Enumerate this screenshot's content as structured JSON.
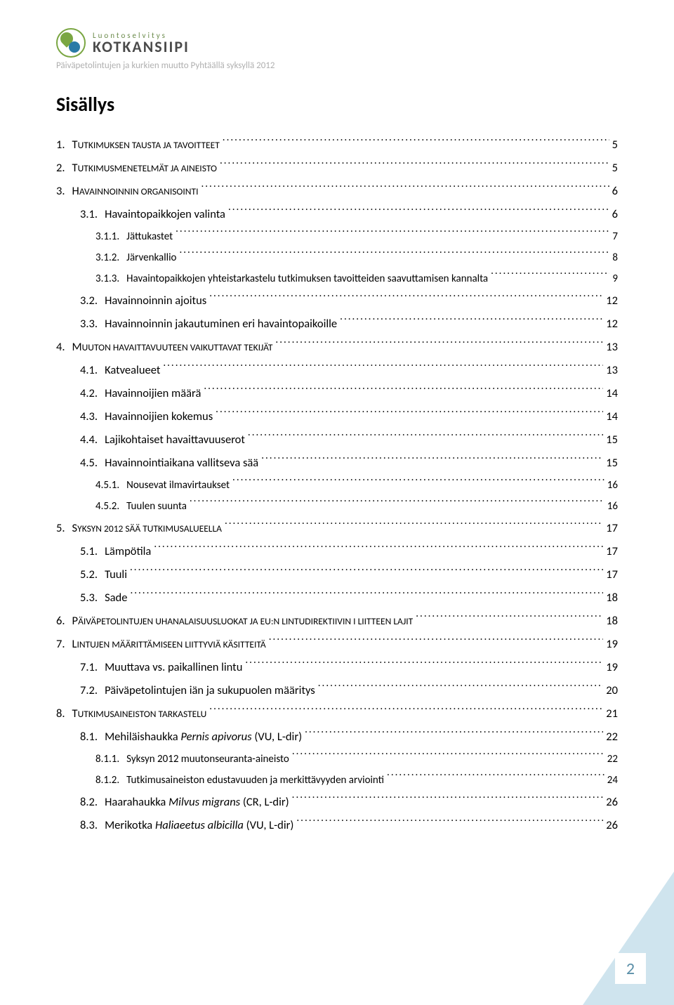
{
  "header": {
    "logo_sub": "Luontoselvitys",
    "logo_main": "KOTKANSIIPI",
    "caption": "Päiväpetolintujen ja kurkien muutto Pyhtäällä syksyllä 2012"
  },
  "title": "Sisällys",
  "page_number": "2",
  "colors": {
    "logo_green": "#7aa642",
    "logo_blue": "#2a7aa6",
    "caption_gray": "#b0b0b0",
    "corner_blue": "#cfe4ee",
    "pagenum_color": "#5b8fa8"
  },
  "toc": [
    {
      "level": 1,
      "num": "1.",
      "label_sc": "T",
      "label": "UTKIMUKSEN TAUSTA JA TAVOITTEET",
      "page": "5"
    },
    {
      "level": 1,
      "num": "2.",
      "label_sc": "T",
      "label": "UTKIMUSMENETELMÄT JA AINEISTO",
      "page": "5"
    },
    {
      "level": 1,
      "num": "3.",
      "label_sc": "H",
      "label": "AVAINNOINNIN ORGANISOINTI",
      "page": "6"
    },
    {
      "level": 2,
      "num": "3.1.",
      "label": "Havaintopaikkojen valinta",
      "page": "6"
    },
    {
      "level": 3,
      "num": "3.1.1.",
      "label": "Jättukastet",
      "page": "7"
    },
    {
      "level": 3,
      "num": "3.1.2.",
      "label": "Järvenkallio",
      "page": "8"
    },
    {
      "level": 3,
      "num": "3.1.3.",
      "label": "Havaintopaikkojen yhteistarkastelu tutkimuksen tavoitteiden saavuttamisen kannalta",
      "page": "9"
    },
    {
      "level": 2,
      "num": "3.2.",
      "label": "Havainnoinnin ajoitus",
      "page": "12"
    },
    {
      "level": 2,
      "num": "3.3.",
      "label": "Havainnoinnin jakautuminen eri havaintopaikoille",
      "page": "12"
    },
    {
      "level": 1,
      "num": "4.",
      "label_sc": "M",
      "label": "UUTON HAVAITTAVUUTEEN VAIKUTTAVAT TEKIJÄT",
      "page": "13"
    },
    {
      "level": 2,
      "num": "4.1.",
      "label": "Katvealueet",
      "page": "13"
    },
    {
      "level": 2,
      "num": "4.2.",
      "label": "Havainnoijien määrä",
      "page": "14"
    },
    {
      "level": 2,
      "num": "4.3.",
      "label": "Havainnoijien kokemus",
      "page": "14"
    },
    {
      "level": 2,
      "num": "4.4.",
      "label": "Lajikohtaiset havaittavuuserot",
      "page": "15"
    },
    {
      "level": 2,
      "num": "4.5.",
      "label": "Havainnointiaikana vallitseva sää",
      "page": "15"
    },
    {
      "level": 3,
      "num": "4.5.1.",
      "label": "Nousevat ilmavirtaukset",
      "page": "16"
    },
    {
      "level": 3,
      "num": "4.5.2.",
      "label": "Tuulen suunta",
      "page": "16"
    },
    {
      "level": 1,
      "num": "5.",
      "label_sc": "S",
      "label": "YKSYN 2012 SÄÄ TUTKIMUSALUEELLA",
      "page": "17"
    },
    {
      "level": 2,
      "num": "5.1.",
      "label": "Lämpötila",
      "page": "17"
    },
    {
      "level": 2,
      "num": "5.2.",
      "label": "Tuuli",
      "page": "17"
    },
    {
      "level": 2,
      "num": "5.3.",
      "label": "Sade",
      "page": "18"
    },
    {
      "level": 1,
      "num": "6.",
      "label_sc": "P",
      "label": "ÄIVÄPETOLINTUJEN UHANALAISUUSLUOKAT JA EU:N LINTUDIREKTIIVIN I LIITTEEN LAJIT",
      "page": "18"
    },
    {
      "level": 1,
      "num": "7.",
      "label_sc": "L",
      "label": "INTUJEN MÄÄRITTÄMISEEN LIITTYVIÄ KÄSITTEITÄ",
      "page": "19"
    },
    {
      "level": 2,
      "num": "7.1.",
      "label": "Muuttava vs. paikallinen lintu",
      "page": "19"
    },
    {
      "level": 2,
      "num": "7.2.",
      "label": "Päiväpetolintujen iän ja sukupuolen määritys",
      "page": "20"
    },
    {
      "level": 1,
      "num": "8.",
      "label_sc": "T",
      "label": "UTKIMUSAINEISTON TARKASTELU",
      "page": "21"
    },
    {
      "level": 2,
      "num": "8.1.",
      "label": "Mehiläishaukka ",
      "italic": "Pernis apivorus",
      "suffix": " (VU, L-dir)",
      "page": "22"
    },
    {
      "level": 3,
      "num": "8.1.1.",
      "label": "Syksyn 2012 muutonseuranta-aineisto",
      "page": "22"
    },
    {
      "level": 3,
      "num": "8.1.2.",
      "label": "Tutkimusaineiston edustavuuden ja merkittävyyden arviointi",
      "page": "24"
    },
    {
      "level": 2,
      "num": "8.2.",
      "label": "Haarahaukka ",
      "italic": "Milvus migrans",
      "suffix": " (CR, L-dir)",
      "page": "26"
    },
    {
      "level": 2,
      "num": "8.3.",
      "label": "Merikotka ",
      "italic": "Haliaeetus albicilla",
      "suffix": " (VU, L-dir)",
      "page": "26"
    }
  ]
}
